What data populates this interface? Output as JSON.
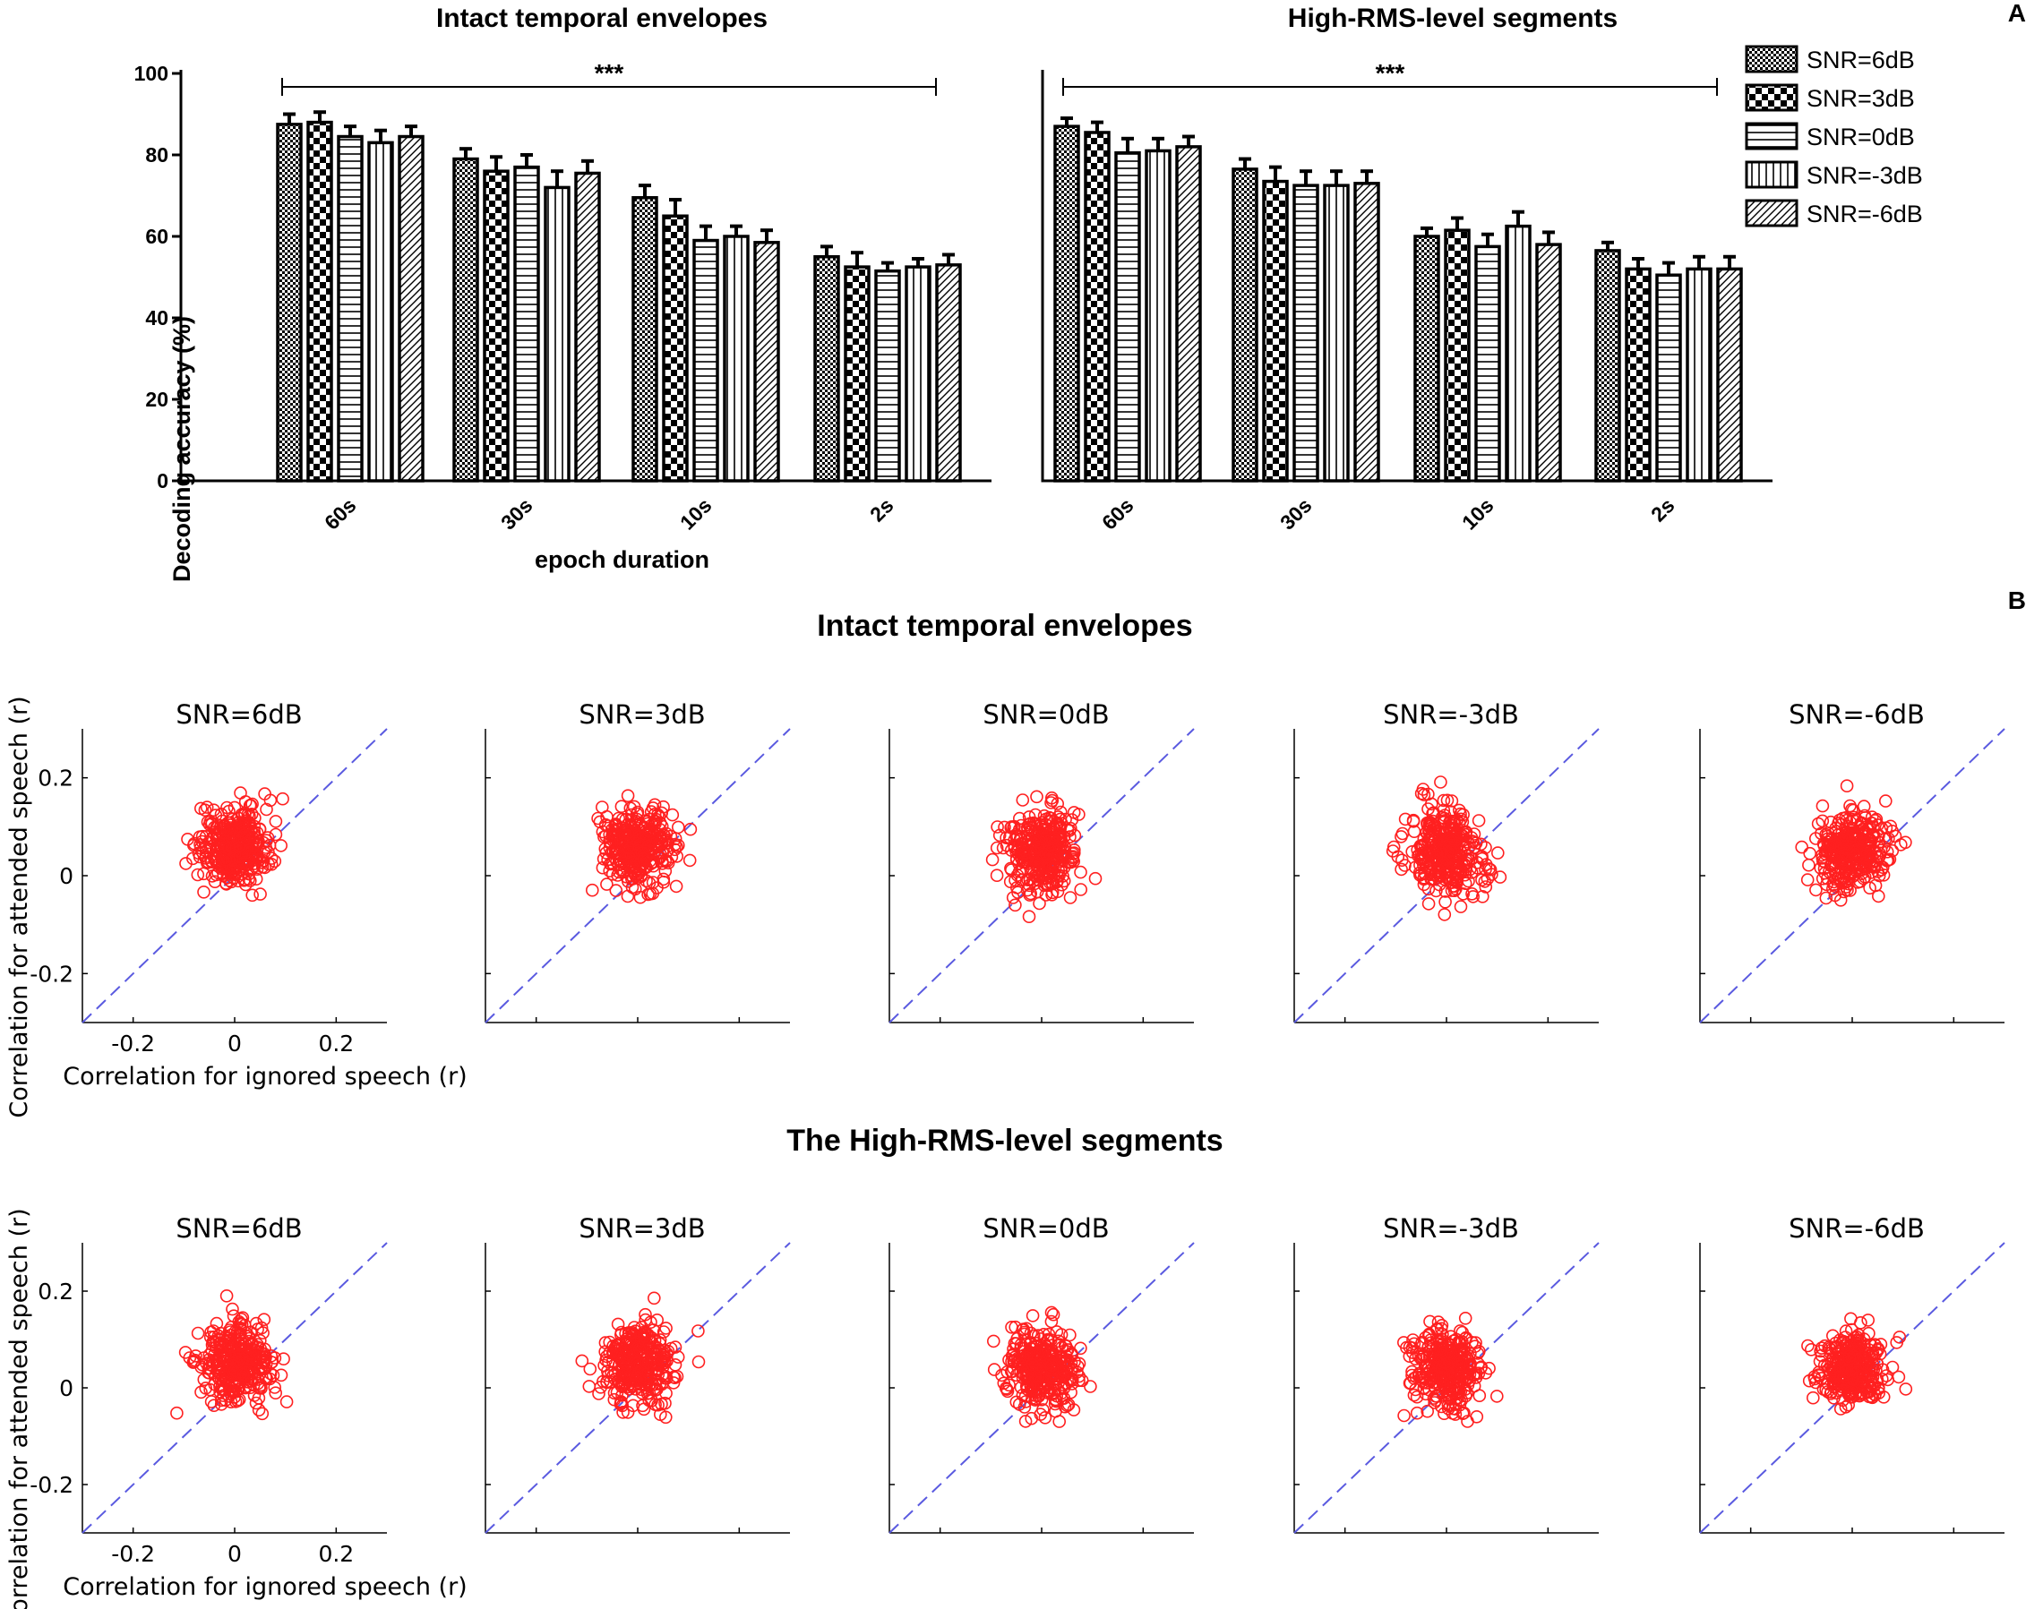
{
  "panel_labels": {
    "a": "A",
    "b": "B"
  },
  "section_b_titles": [
    "Intact temporal envelopes",
    "The High-RMS-level segments"
  ],
  "chart_data": [
    {
      "type": "bar",
      "title": "Intact temporal envelopes",
      "xlabel": "epoch duration",
      "ylabel": "Decoding accuracy (%)",
      "ylim": [
        0,
        100
      ],
      "yticks": [
        0,
        20,
        40,
        60,
        80,
        100
      ],
      "categories": [
        "60s",
        "30s",
        "10s",
        "2s"
      ],
      "significance": "***",
      "legend": "top-right",
      "series": [
        {
          "name": "SNR=6dB",
          "pattern": "checker-fine",
          "values": [
            87.5,
            79,
            69.5,
            55
          ],
          "errors": [
            2.5,
            2.5,
            3,
            2.5
          ]
        },
        {
          "name": "SNR=3dB",
          "pattern": "checker-coarse",
          "values": [
            88,
            76,
            65,
            52.5
          ],
          "errors": [
            2.5,
            3.5,
            4,
            3.5
          ]
        },
        {
          "name": "SNR=0dB",
          "pattern": "hlines",
          "values": [
            84.5,
            77,
            59,
            51.5
          ],
          "errors": [
            2.5,
            3,
            3.5,
            2
          ]
        },
        {
          "name": "SNR=-3dB",
          "pattern": "vlines",
          "values": [
            83,
            72,
            60,
            52.5
          ],
          "errors": [
            3,
            4,
            2.5,
            2
          ]
        },
        {
          "name": "SNR=-6dB",
          "pattern": "diag",
          "values": [
            84.5,
            75.5,
            58.5,
            53
          ],
          "errors": [
            2.5,
            3,
            3,
            2.5
          ]
        }
      ]
    },
    {
      "type": "bar",
      "title": "High-RMS-level segments",
      "xlabel": "",
      "ylabel": "",
      "ylim": [
        0,
        100
      ],
      "categories": [
        "60s",
        "30s",
        "10s",
        "2s"
      ],
      "significance": "***",
      "series": [
        {
          "name": "SNR=6dB",
          "pattern": "checker-fine",
          "values": [
            87,
            76.5,
            60,
            56.5
          ],
          "errors": [
            2,
            2.5,
            2,
            2
          ]
        },
        {
          "name": "SNR=3dB",
          "pattern": "checker-coarse",
          "values": [
            85.5,
            73.5,
            61.5,
            52
          ],
          "errors": [
            2.5,
            3.5,
            3,
            2.5
          ]
        },
        {
          "name": "SNR=0dB",
          "pattern": "hlines",
          "values": [
            80.5,
            72.5,
            57.5,
            50.5
          ],
          "errors": [
            3.5,
            3.5,
            3,
            3
          ]
        },
        {
          "name": "SNR=-3dB",
          "pattern": "vlines",
          "values": [
            81,
            72.5,
            62.5,
            52
          ],
          "errors": [
            3,
            3.5,
            3.5,
            3
          ]
        },
        {
          "name": "SNR=-6dB",
          "pattern": "diag",
          "values": [
            82,
            73,
            58,
            52
          ],
          "errors": [
            2.5,
            3,
            3,
            3
          ]
        }
      ]
    },
    {
      "type": "scatter",
      "group": "Intact temporal envelopes",
      "panels": [
        "SNR=6dB",
        "SNR=3dB",
        "SNR=0dB",
        "SNR=-3dB",
        "SNR=-6dB"
      ],
      "xlabel": "Correlation for ignored speech (r)",
      "ylabel": "Correlation for attended speech (r)",
      "xlim": [
        -0.3,
        0.3
      ],
      "ylim": [
        -0.3,
        0.3
      ],
      "xtick_labels": [
        "-0.2",
        "0",
        "0.2"
      ],
      "ytick_labels": [
        "0.2",
        "0",
        "-0.2"
      ],
      "diagonal": "y=x",
      "cluster": [
        {
          "mean_x": 0.0,
          "mean_y": 0.06,
          "sd_x": 0.035,
          "sd_y": 0.04
        },
        {
          "mean_x": 0.0,
          "mean_y": 0.06,
          "sd_x": 0.035,
          "sd_y": 0.04
        },
        {
          "mean_x": 0.0,
          "mean_y": 0.05,
          "sd_x": 0.035,
          "sd_y": 0.045
        },
        {
          "mean_x": 0.0,
          "mean_y": 0.05,
          "sd_x": 0.035,
          "sd_y": 0.045
        },
        {
          "mean_x": 0.0,
          "mean_y": 0.05,
          "sd_x": 0.035,
          "sd_y": 0.04
        }
      ]
    },
    {
      "type": "scatter",
      "group": "The High-RMS-level segments",
      "panels": [
        "SNR=6dB",
        "SNR=3dB",
        "SNR=0dB",
        "SNR=-3dB",
        "SNR=-6dB"
      ],
      "xlabel": "Correlation for ignored speech (r)",
      "ylabel": "Correlation for attended speech (r)",
      "xlim": [
        -0.3,
        0.3
      ],
      "ylim": [
        -0.3,
        0.3
      ],
      "xtick_labels": [
        "-0.2",
        "0",
        "0.2"
      ],
      "ytick_labels": [
        "0.2",
        "0",
        "-0.2"
      ],
      "diagonal": "y=x",
      "cluster": [
        {
          "mean_x": 0.0,
          "mean_y": 0.05,
          "sd_x": 0.035,
          "sd_y": 0.038
        },
        {
          "mean_x": 0.0,
          "mean_y": 0.05,
          "sd_x": 0.035,
          "sd_y": 0.04
        },
        {
          "mean_x": 0.0,
          "mean_y": 0.04,
          "sd_x": 0.035,
          "sd_y": 0.042
        },
        {
          "mean_x": 0.0,
          "mean_y": 0.04,
          "sd_x": 0.035,
          "sd_y": 0.04
        },
        {
          "mean_x": 0.0,
          "mean_y": 0.04,
          "sd_x": 0.033,
          "sd_y": 0.035
        }
      ]
    }
  ]
}
